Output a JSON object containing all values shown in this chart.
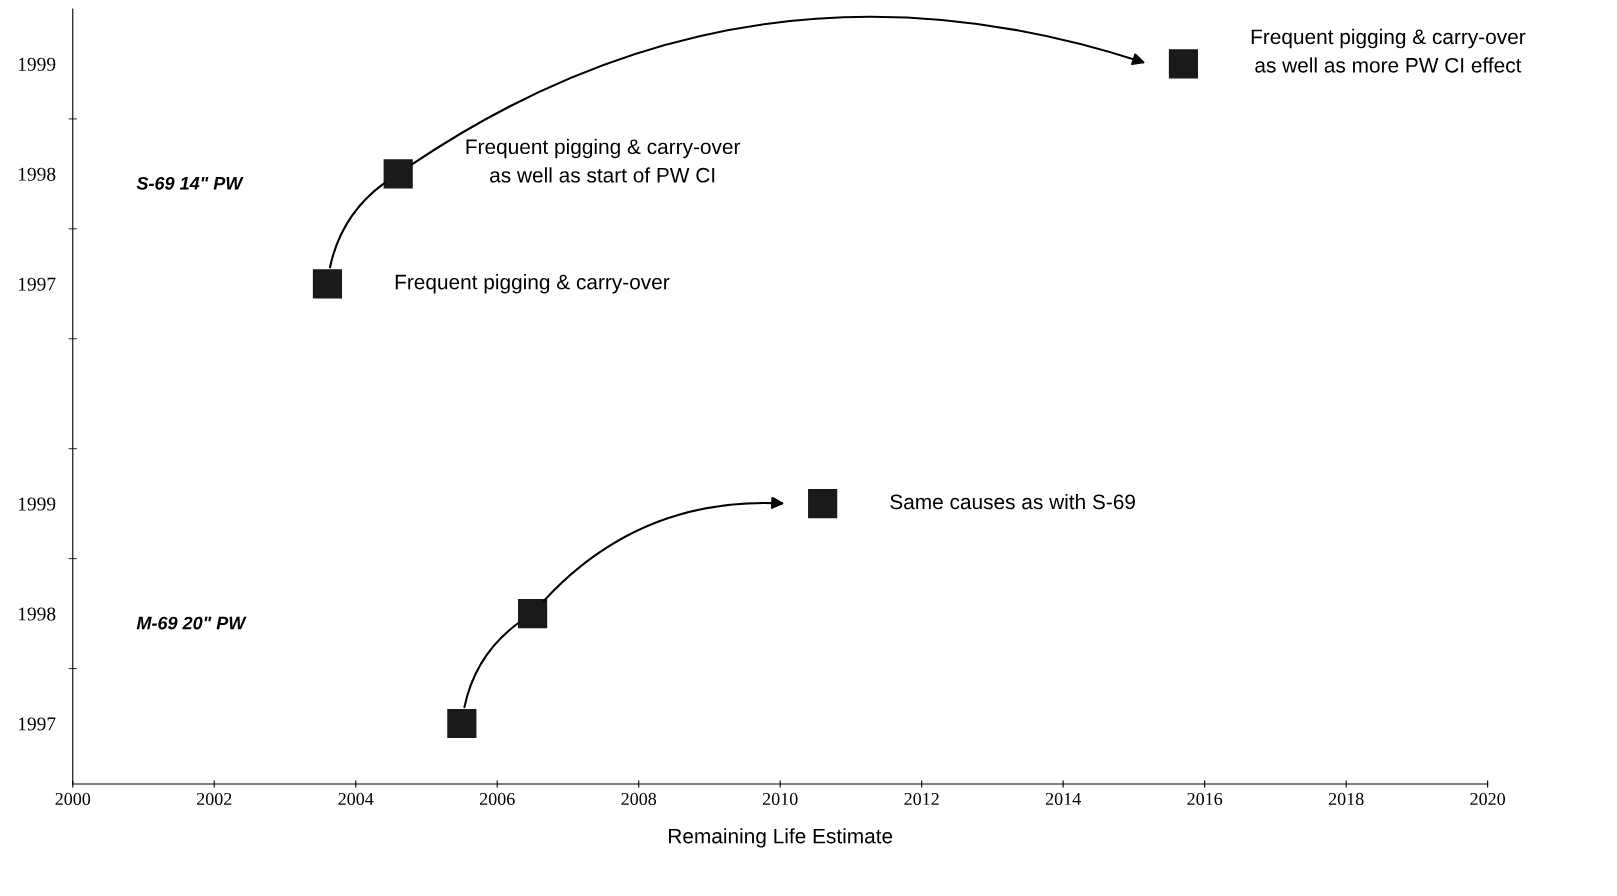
{
  "chart_data": {
    "type": "scatter",
    "orientation": "horizontal",
    "xlabel": "Remaining Life Estimate",
    "categories": [
      "1999",
      "1998",
      "1997",
      null,
      "1999",
      "1998",
      "1997"
    ],
    "xlim": [
      2000,
      2020
    ],
    "xticks": [
      2000,
      2002,
      2004,
      2006,
      2008,
      2010,
      2012,
      2014,
      2016,
      2018,
      2020
    ],
    "marker": "square",
    "annotations": [
      "S-69 14\" PW",
      "M-69 20\" PW"
    ],
    "grid": false,
    "legend": false,
    "series": [
      {
        "color": "#1a1a1a",
        "values": [
          2015.7,
          2004.6,
          2003.6,
          null,
          null,
          null,
          null
        ],
        "value_labels": [
          "Frequent pigging & carry-over\nas well as more PW CI effect",
          "Frequent pigging & carry-over\nas well as start of PW CI",
          "Frequent pigging & carry-over",
          null,
          null,
          null,
          null
        ]
      },
      {
        "color": "#1a1a1a",
        "values": [
          null,
          null,
          null,
          null,
          2010.6,
          2006.5,
          2005.5
        ],
        "value_labels": [
          null,
          null,
          null,
          null,
          "Same causes as with S-69",
          null,
          null
        ]
      }
    ]
  }
}
